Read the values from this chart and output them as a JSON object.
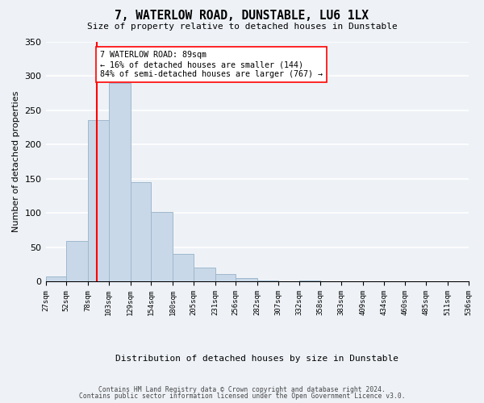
{
  "title": "7, WATERLOW ROAD, DUNSTABLE, LU6 1LX",
  "subtitle": "Size of property relative to detached houses in Dunstable",
  "xlabel": "Distribution of detached houses by size in Dunstable",
  "ylabel": "Number of detached properties",
  "bar_edges": [
    27,
    52,
    78,
    103,
    129,
    154,
    180,
    205,
    231,
    256,
    282,
    307,
    332,
    358,
    383,
    409,
    434,
    460,
    485,
    511,
    536
  ],
  "bar_heights": [
    8,
    59,
    236,
    289,
    145,
    101,
    40,
    21,
    11,
    5,
    2,
    0,
    2,
    1,
    0,
    0,
    0,
    0,
    0,
    1
  ],
  "bar_color": "#c8d8e8",
  "bar_edge_color": "#a0b8cc",
  "property_line_x": 89,
  "property_line_color": "red",
  "ylim": [
    0,
    350
  ],
  "yticks": [
    0,
    50,
    100,
    150,
    200,
    250,
    300,
    350
  ],
  "annotation_text": "7 WATERLOW ROAD: 89sqm\n← 16% of detached houses are smaller (144)\n84% of semi-detached houses are larger (767) →",
  "annotation_box_color": "white",
  "annotation_box_edge_color": "red",
  "footer_line1": "Contains HM Land Registry data © Crown copyright and database right 2024.",
  "footer_line2": "Contains public sector information licensed under the Open Government Licence v3.0.",
  "tick_labels": [
    "27sqm",
    "52sqm",
    "78sqm",
    "103sqm",
    "129sqm",
    "154sqm",
    "180sqm",
    "205sqm",
    "231sqm",
    "256sqm",
    "282sqm",
    "307sqm",
    "332sqm",
    "358sqm",
    "383sqm",
    "409sqm",
    "434sqm",
    "460sqm",
    "485sqm",
    "511sqm",
    "536sqm"
  ],
  "background_color": "#eef2f7"
}
